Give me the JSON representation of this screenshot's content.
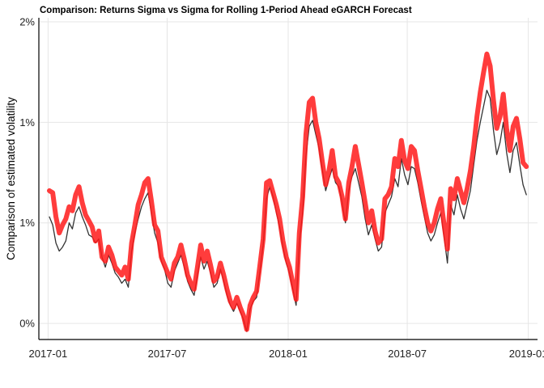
{
  "chart_data": {
    "type": "line",
    "title": "Comparison: Returns Sigma vs Sigma for Rolling 1-Period Ahead eGARCH Forecast",
    "xlabel": "",
    "ylabel": "Comparison of estimated volatility",
    "x_is_date": true,
    "xlim": [
      "2016-12-18",
      "2019-01-15"
    ],
    "ylim": [
      -0.0008,
      0.0152
    ],
    "x_ticks": [
      {
        "value": "2017-01-01",
        "label": "2017-01"
      },
      {
        "value": "2017-07-01",
        "label": "2017-07"
      },
      {
        "value": "2018-01-01",
        "label": "2018-01"
      },
      {
        "value": "2018-07-01",
        "label": "2018-07"
      },
      {
        "value": "2019-01-01",
        "label": "2019-01"
      }
    ],
    "y_ticks": [
      {
        "value": 0.0,
        "label": "0%"
      },
      {
        "value": 0.005,
        "label": "1%"
      },
      {
        "value": 0.01,
        "label": "1%"
      },
      {
        "value": 0.015,
        "label": "2%"
      }
    ],
    "grid": true,
    "legend": "none",
    "series": [
      {
        "color": "#333333",
        "x": [
          "2017-01-03",
          "2017-01-08",
          "2017-01-13",
          "2017-01-18",
          "2017-01-23",
          "2017-01-28",
          "2017-02-02",
          "2017-02-07",
          "2017-02-12",
          "2017-02-17",
          "2017-02-22",
          "2017-02-27",
          "2017-03-04",
          "2017-03-09",
          "2017-03-14",
          "2017-03-19",
          "2017-03-24",
          "2017-03-29",
          "2017-04-03",
          "2017-04-08",
          "2017-04-13",
          "2017-04-18",
          "2017-04-23",
          "2017-04-28",
          "2017-05-03",
          "2017-05-08",
          "2017-05-13",
          "2017-05-18",
          "2017-05-23",
          "2017-05-28",
          "2017-06-02",
          "2017-06-07",
          "2017-06-12",
          "2017-06-17",
          "2017-06-22",
          "2017-06-27",
          "2017-07-02",
          "2017-07-07",
          "2017-07-12",
          "2017-07-17",
          "2017-07-22",
          "2017-07-27",
          "2017-08-01",
          "2017-08-06",
          "2017-08-11",
          "2017-08-16",
          "2017-08-21",
          "2017-08-26",
          "2017-08-31",
          "2017-09-05",
          "2017-09-10",
          "2017-09-15",
          "2017-09-20",
          "2017-09-25",
          "2017-09-30",
          "2017-10-05",
          "2017-10-10",
          "2017-10-15",
          "2017-10-20",
          "2017-10-25",
          "2017-10-30",
          "2017-11-04",
          "2017-11-09",
          "2017-11-14",
          "2017-11-19",
          "2017-11-24",
          "2017-11-29",
          "2017-12-04",
          "2017-12-09",
          "2017-12-14",
          "2017-12-19",
          "2017-12-24",
          "2017-12-29",
          "2018-01-03",
          "2018-01-08",
          "2018-01-13",
          "2018-01-18",
          "2018-01-23",
          "2018-01-28",
          "2018-02-02",
          "2018-02-07",
          "2018-02-12",
          "2018-02-17",
          "2018-02-22",
          "2018-02-27",
          "2018-03-04",
          "2018-03-09",
          "2018-03-14",
          "2018-03-19",
          "2018-03-24",
          "2018-03-29",
          "2018-04-03",
          "2018-04-08",
          "2018-04-13",
          "2018-04-18",
          "2018-04-23",
          "2018-04-28",
          "2018-05-03",
          "2018-05-08",
          "2018-05-13",
          "2018-05-18",
          "2018-05-23",
          "2018-05-28",
          "2018-06-02",
          "2018-06-07",
          "2018-06-12",
          "2018-06-17",
          "2018-06-22",
          "2018-06-27",
          "2018-07-02",
          "2018-07-07",
          "2018-07-12",
          "2018-07-17",
          "2018-07-22",
          "2018-07-27",
          "2018-08-01",
          "2018-08-06",
          "2018-08-11",
          "2018-08-16",
          "2018-08-21",
          "2018-08-26",
          "2018-08-31",
          "2018-09-05",
          "2018-09-10",
          "2018-09-15",
          "2018-09-20",
          "2018-09-25",
          "2018-09-30",
          "2018-10-05",
          "2018-10-10",
          "2018-10-15",
          "2018-10-20",
          "2018-10-25",
          "2018-10-30",
          "2018-11-04",
          "2018-11-09",
          "2018-11-14",
          "2018-11-19",
          "2018-11-24",
          "2018-11-29",
          "2018-12-04",
          "2018-12-09",
          "2018-12-14",
          "2018-12-19",
          "2018-12-24",
          "2018-12-29"
        ],
        "values": [
          0.0053,
          0.0049,
          0.004,
          0.0036,
          0.0038,
          0.0041,
          0.005,
          0.0047,
          0.0055,
          0.0058,
          0.0053,
          0.0049,
          0.0044,
          0.0043,
          0.004,
          0.0042,
          0.0033,
          0.0028,
          0.0034,
          0.003,
          0.0025,
          0.0023,
          0.002,
          0.0022,
          0.0018,
          0.0036,
          0.0045,
          0.0052,
          0.0058,
          0.0062,
          0.0065,
          0.0055,
          0.0045,
          0.004,
          0.0031,
          0.0027,
          0.002,
          0.0018,
          0.0026,
          0.003,
          0.0034,
          0.0028,
          0.0021,
          0.0017,
          0.0014,
          0.0024,
          0.0033,
          0.0027,
          0.0031,
          0.0025,
          0.0018,
          0.002,
          0.0027,
          0.0021,
          0.0014,
          0.0009,
          0.0006,
          0.001,
          0.0006,
          0.0002,
          -0.0004,
          0.0007,
          0.0011,
          0.0013,
          0.0026,
          0.0039,
          0.0062,
          0.0068,
          0.0063,
          0.0055,
          0.0048,
          0.0038,
          0.003,
          0.0025,
          0.0017,
          0.0009,
          0.004,
          0.0055,
          0.0083,
          0.0098,
          0.0101,
          0.0094,
          0.0087,
          0.0076,
          0.0066,
          0.0072,
          0.0077,
          0.007,
          0.0068,
          0.006,
          0.005,
          0.0066,
          0.0073,
          0.0077,
          0.007,
          0.0063,
          0.0052,
          0.0044,
          0.0049,
          0.0042,
          0.0036,
          0.0038,
          0.0055,
          0.0059,
          0.0063,
          0.0072,
          0.0068,
          0.0082,
          0.0074,
          0.0069,
          0.0078,
          0.0077,
          0.007,
          0.0061,
          0.0053,
          0.0045,
          0.0041,
          0.0044,
          0.005,
          0.0055,
          0.0043,
          0.003,
          0.0059,
          0.0054,
          0.0064,
          0.0057,
          0.0052,
          0.0059,
          0.0066,
          0.0079,
          0.0091,
          0.01,
          0.0108,
          0.0116,
          0.0112,
          0.0096,
          0.0084,
          0.009,
          0.01,
          0.0085,
          0.0075,
          0.0086,
          0.009,
          0.0079,
          0.0069,
          0.0064
        ]
      },
      {
        "color": "#ff1a1a",
        "x": [
          "2017-01-03",
          "2017-01-08",
          "2017-01-13",
          "2017-01-18",
          "2017-01-23",
          "2017-01-28",
          "2017-02-02",
          "2017-02-07",
          "2017-02-12",
          "2017-02-17",
          "2017-02-22",
          "2017-02-27",
          "2017-03-04",
          "2017-03-09",
          "2017-03-14",
          "2017-03-19",
          "2017-03-24",
          "2017-03-29",
          "2017-04-03",
          "2017-04-08",
          "2017-04-13",
          "2017-04-18",
          "2017-04-23",
          "2017-04-28",
          "2017-05-03",
          "2017-05-08",
          "2017-05-13",
          "2017-05-18",
          "2017-05-23",
          "2017-05-28",
          "2017-06-02",
          "2017-06-07",
          "2017-06-12",
          "2017-06-17",
          "2017-06-22",
          "2017-06-27",
          "2017-07-02",
          "2017-07-07",
          "2017-07-12",
          "2017-07-17",
          "2017-07-22",
          "2017-07-27",
          "2017-08-01",
          "2017-08-06",
          "2017-08-11",
          "2017-08-16",
          "2017-08-21",
          "2017-08-26",
          "2017-08-31",
          "2017-09-05",
          "2017-09-10",
          "2017-09-15",
          "2017-09-20",
          "2017-09-25",
          "2017-09-30",
          "2017-10-05",
          "2017-10-10",
          "2017-10-15",
          "2017-10-20",
          "2017-10-25",
          "2017-10-30",
          "2017-11-04",
          "2017-11-09",
          "2017-11-14",
          "2017-11-19",
          "2017-11-24",
          "2017-11-29",
          "2017-12-04",
          "2017-12-09",
          "2017-12-14",
          "2017-12-19",
          "2017-12-24",
          "2017-12-29",
          "2018-01-03",
          "2018-01-08",
          "2018-01-13",
          "2018-01-18",
          "2018-01-23",
          "2018-01-28",
          "2018-02-02",
          "2018-02-07",
          "2018-02-12",
          "2018-02-17",
          "2018-02-22",
          "2018-02-27",
          "2018-03-04",
          "2018-03-09",
          "2018-03-14",
          "2018-03-19",
          "2018-03-24",
          "2018-03-29",
          "2018-04-03",
          "2018-04-08",
          "2018-04-13",
          "2018-04-18",
          "2018-04-23",
          "2018-04-28",
          "2018-05-03",
          "2018-05-08",
          "2018-05-13",
          "2018-05-18",
          "2018-05-23",
          "2018-05-28",
          "2018-06-02",
          "2018-06-07",
          "2018-06-12",
          "2018-06-17",
          "2018-06-22",
          "2018-06-27",
          "2018-07-02",
          "2018-07-07",
          "2018-07-12",
          "2018-07-17",
          "2018-07-22",
          "2018-07-27",
          "2018-08-01",
          "2018-08-06",
          "2018-08-11",
          "2018-08-16",
          "2018-08-21",
          "2018-08-26",
          "2018-08-31",
          "2018-09-05",
          "2018-09-10",
          "2018-09-15",
          "2018-09-20",
          "2018-09-25",
          "2018-09-30",
          "2018-10-05",
          "2018-10-10",
          "2018-10-15",
          "2018-10-20",
          "2018-10-25",
          "2018-10-30",
          "2018-11-04",
          "2018-11-09",
          "2018-11-14",
          "2018-11-19",
          "2018-11-24",
          "2018-11-29",
          "2018-12-04",
          "2018-12-09",
          "2018-12-14",
          "2018-12-19",
          "2018-12-24",
          "2018-12-29"
        ],
        "values": [
          0.0066,
          0.0065,
          0.0053,
          0.0045,
          0.0049,
          0.0052,
          0.0058,
          0.0056,
          0.0064,
          0.0068,
          0.006,
          0.0054,
          0.0051,
          0.0048,
          0.0041,
          0.0046,
          0.0033,
          0.0031,
          0.0038,
          0.0034,
          0.0028,
          0.0026,
          0.0024,
          0.0028,
          0.0022,
          0.004,
          0.0049,
          0.0059,
          0.0064,
          0.007,
          0.0072,
          0.0061,
          0.0049,
          0.0046,
          0.0033,
          0.0029,
          0.0025,
          0.0022,
          0.003,
          0.0033,
          0.0039,
          0.0032,
          0.0024,
          0.002,
          0.0017,
          0.0028,
          0.0039,
          0.0031,
          0.0036,
          0.0029,
          0.0021,
          0.0023,
          0.003,
          0.0024,
          0.0017,
          0.0011,
          0.0008,
          0.0013,
          0.0008,
          0.0004,
          -0.0003,
          0.0009,
          0.0013,
          0.0016,
          0.0029,
          0.0042,
          0.007,
          0.0071,
          0.0065,
          0.0059,
          0.0052,
          0.0041,
          0.0033,
          0.0028,
          0.002,
          0.0012,
          0.0045,
          0.0063,
          0.0094,
          0.011,
          0.0112,
          0.01,
          0.0092,
          0.008,
          0.0069,
          0.0076,
          0.0086,
          0.0073,
          0.007,
          0.0063,
          0.0052,
          0.007,
          0.0078,
          0.0088,
          0.0079,
          0.007,
          0.006,
          0.005,
          0.0056,
          0.0046,
          0.004,
          0.0042,
          0.0062,
          0.0064,
          0.0068,
          0.0082,
          0.0078,
          0.0091,
          0.0081,
          0.0077,
          0.0088,
          0.0086,
          0.0076,
          0.0067,
          0.0058,
          0.005,
          0.0046,
          0.005,
          0.0057,
          0.0062,
          0.0049,
          0.0037,
          0.0067,
          0.0062,
          0.0072,
          0.0066,
          0.006,
          0.0067,
          0.0076,
          0.0088,
          0.0103,
          0.0115,
          0.0125,
          0.0134,
          0.0128,
          0.0111,
          0.0097,
          0.0103,
          0.0114,
          0.0097,
          0.0086,
          0.0098,
          0.0102,
          0.0092,
          0.008,
          0.0078
        ]
      }
    ]
  }
}
